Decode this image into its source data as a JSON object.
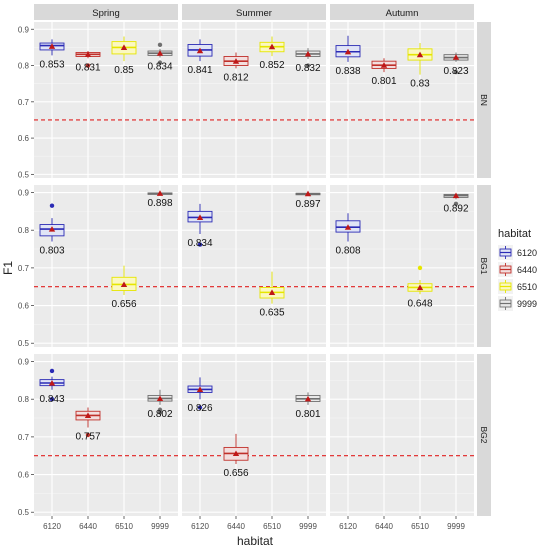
{
  "chart_data": {
    "type": "box",
    "xlabel": "habitat",
    "ylabel": "F1",
    "ylim": [
      0.49,
      0.92
    ],
    "yticks": [
      "0.5",
      "0.6",
      "0.7",
      "0.8",
      "0.9"
    ],
    "ytick_values": [
      0.5,
      0.6,
      0.7,
      0.8,
      0.9
    ],
    "reference_line": 0.65,
    "grid": true,
    "legend_position": "right",
    "col_facets": [
      "Spring",
      "Summer",
      "Autumn"
    ],
    "row_facets": [
      "BN",
      "BG1",
      "BG2"
    ],
    "categories": [
      "6120",
      "6440",
      "6510",
      "9999"
    ],
    "legend": {
      "title": "habitat",
      "items": [
        {
          "label": "6120",
          "color": "#2b2bb5"
        },
        {
          "label": "6440",
          "color": "#c0302a"
        },
        {
          "label": "6510",
          "color": "#e6e600"
        },
        {
          "label": "9999",
          "color": "#707070"
        }
      ]
    },
    "colors": {
      "6120": "#2b2bb5",
      "6440": "#c0302a",
      "6510": "#e6e600",
      "9999": "#707070"
    },
    "fills": {
      "6120": "#e0e4f6",
      "6440": "#f3dede",
      "6510": "#fbf8c0",
      "9999": "#e8e8e8"
    },
    "mean_color": "#c01818",
    "panels": [
      {
        "row": "BN",
        "col": "Spring",
        "boxes": [
          {
            "habitat": "6120",
            "lo": 0.828,
            "q1": 0.843,
            "median": 0.855,
            "q3": 0.862,
            "hi": 0.872,
            "mean": 0.853,
            "label": "0.853",
            "outliers": []
          },
          {
            "habitat": "6440",
            "lo": 0.82,
            "q1": 0.825,
            "median": 0.831,
            "q3": 0.836,
            "hi": 0.84,
            "mean": 0.831,
            "label": "0.831",
            "outliers": [
              0.8
            ]
          },
          {
            "habitat": "6510",
            "lo": 0.812,
            "q1": 0.832,
            "median": 0.85,
            "q3": 0.866,
            "hi": 0.88,
            "mean": 0.85,
            "label": "0.85",
            "outliers": []
          },
          {
            "habitat": "9999",
            "lo": 0.822,
            "q1": 0.828,
            "median": 0.834,
            "q3": 0.84,
            "hi": 0.846,
            "mean": 0.834,
            "label": "0.834",
            "outliers": [
              0.857,
              0.808
            ]
          }
        ]
      },
      {
        "row": "BN",
        "col": "Summer",
        "boxes": [
          {
            "habitat": "6120",
            "lo": 0.812,
            "q1": 0.826,
            "median": 0.843,
            "q3": 0.858,
            "hi": 0.872,
            "mean": 0.841,
            "label": "0.841",
            "outliers": []
          },
          {
            "habitat": "6440",
            "lo": 0.792,
            "q1": 0.8,
            "median": 0.812,
            "q3": 0.825,
            "hi": 0.836,
            "mean": 0.812,
            "label": "0.812",
            "outliers": []
          },
          {
            "habitat": "6510",
            "lo": 0.826,
            "q1": 0.838,
            "median": 0.852,
            "q3": 0.864,
            "hi": 0.88,
            "mean": 0.852,
            "label": "0.852",
            "outliers": []
          },
          {
            "habitat": "9999",
            "lo": 0.818,
            "q1": 0.825,
            "median": 0.832,
            "q3": 0.84,
            "hi": 0.848,
            "mean": 0.832,
            "label": "0.832",
            "outliers": [
              0.8
            ]
          }
        ]
      },
      {
        "row": "BN",
        "col": "Autumn",
        "boxes": [
          {
            "habitat": "6120",
            "lo": 0.81,
            "q1": 0.824,
            "median": 0.838,
            "q3": 0.855,
            "hi": 0.882,
            "mean": 0.838,
            "label": "0.838",
            "outliers": []
          },
          {
            "habitat": "6440",
            "lo": 0.782,
            "q1": 0.792,
            "median": 0.801,
            "q3": 0.812,
            "hi": 0.82,
            "mean": 0.801,
            "label": "0.801",
            "outliers": []
          },
          {
            "habitat": "6510",
            "lo": 0.775,
            "q1": 0.815,
            "median": 0.83,
            "q3": 0.846,
            "hi": 0.862,
            "mean": 0.83,
            "label": "0.83",
            "outliers": []
          },
          {
            "habitat": "9999",
            "lo": 0.81,
            "q1": 0.815,
            "median": 0.822,
            "q3": 0.83,
            "hi": 0.836,
            "mean": 0.823,
            "label": "0.823",
            "outliers": [
              0.782
            ]
          }
        ]
      },
      {
        "row": "BG1",
        "col": "Spring",
        "boxes": [
          {
            "habitat": "6120",
            "lo": 0.77,
            "q1": 0.785,
            "median": 0.803,
            "q3": 0.815,
            "hi": 0.832,
            "mean": 0.803,
            "label": "0.803",
            "outliers": [
              0.865
            ]
          },
          {
            "habitat": "6510",
            "lo": 0.628,
            "q1": 0.64,
            "median": 0.656,
            "q3": 0.675,
            "hi": 0.706,
            "mean": 0.656,
            "label": "0.656",
            "outliers": []
          },
          {
            "habitat": "9999",
            "lo": 0.896,
            "q1": 0.897,
            "median": 0.898,
            "q3": 0.899,
            "hi": 0.9,
            "mean": 0.898,
            "label": "0.898",
            "outliers": []
          }
        ]
      },
      {
        "row": "BG1",
        "col": "Summer",
        "boxes": [
          {
            "habitat": "6120",
            "lo": 0.79,
            "q1": 0.822,
            "median": 0.834,
            "q3": 0.85,
            "hi": 0.87,
            "mean": 0.834,
            "label": "0.834",
            "outliers": [
              0.762
            ]
          },
          {
            "habitat": "6510",
            "lo": 0.605,
            "q1": 0.62,
            "median": 0.635,
            "q3": 0.648,
            "hi": 0.69,
            "mean": 0.635,
            "label": "0.635",
            "outliers": []
          },
          {
            "habitat": "9999",
            "lo": 0.894,
            "q1": 0.895,
            "median": 0.897,
            "q3": 0.898,
            "hi": 0.9,
            "mean": 0.897,
            "label": "0.897",
            "outliers": []
          }
        ]
      },
      {
        "row": "BG1",
        "col": "Autumn",
        "boxes": [
          {
            "habitat": "6120",
            "lo": 0.77,
            "q1": 0.795,
            "median": 0.808,
            "q3": 0.825,
            "hi": 0.845,
            "mean": 0.808,
            "label": "0.808",
            "outliers": []
          },
          {
            "habitat": "6510",
            "lo": 0.63,
            "q1": 0.638,
            "median": 0.648,
            "q3": 0.658,
            "hi": 0.668,
            "mean": 0.648,
            "label": "0.648",
            "outliers": [
              0.7
            ]
          },
          {
            "habitat": "9999",
            "lo": 0.882,
            "q1": 0.887,
            "median": 0.892,
            "q3": 0.895,
            "hi": 0.897,
            "mean": 0.892,
            "label": "0.892",
            "outliers": [
              0.87
            ]
          }
        ]
      },
      {
        "row": "BG2",
        "col": "Spring",
        "boxes": [
          {
            "habitat": "6120",
            "lo": 0.825,
            "q1": 0.836,
            "median": 0.843,
            "q3": 0.852,
            "hi": 0.86,
            "mean": 0.843,
            "label": "0.843",
            "outliers": [
              0.875,
              0.8
            ]
          },
          {
            "habitat": "6440",
            "lo": 0.725,
            "q1": 0.745,
            "median": 0.757,
            "q3": 0.768,
            "hi": 0.778,
            "mean": 0.757,
            "label": "0.757",
            "outliers": [
              0.705
            ]
          },
          {
            "habitat": "9999",
            "lo": 0.785,
            "q1": 0.795,
            "median": 0.802,
            "q3": 0.81,
            "hi": 0.825,
            "mean": 0.802,
            "label": "0.802",
            "outliers": [
              0.772,
              0.765
            ]
          }
        ]
      },
      {
        "row": "BG2",
        "col": "Summer",
        "boxes": [
          {
            "habitat": "6120",
            "lo": 0.8,
            "q1": 0.818,
            "median": 0.826,
            "q3": 0.835,
            "hi": 0.858,
            "mean": 0.826,
            "label": "0.826",
            "outliers": [
              0.778
            ]
          },
          {
            "habitat": "6440",
            "lo": 0.628,
            "q1": 0.638,
            "median": 0.656,
            "q3": 0.672,
            "hi": 0.708,
            "mean": 0.656,
            "label": "0.656",
            "outliers": []
          },
          {
            "habitat": "9999",
            "lo": 0.785,
            "q1": 0.794,
            "median": 0.801,
            "q3": 0.81,
            "hi": 0.818,
            "mean": 0.801,
            "label": "0.801",
            "outliers": []
          }
        ]
      },
      {
        "row": "BG2",
        "col": "Autumn",
        "boxes": []
      }
    ]
  }
}
